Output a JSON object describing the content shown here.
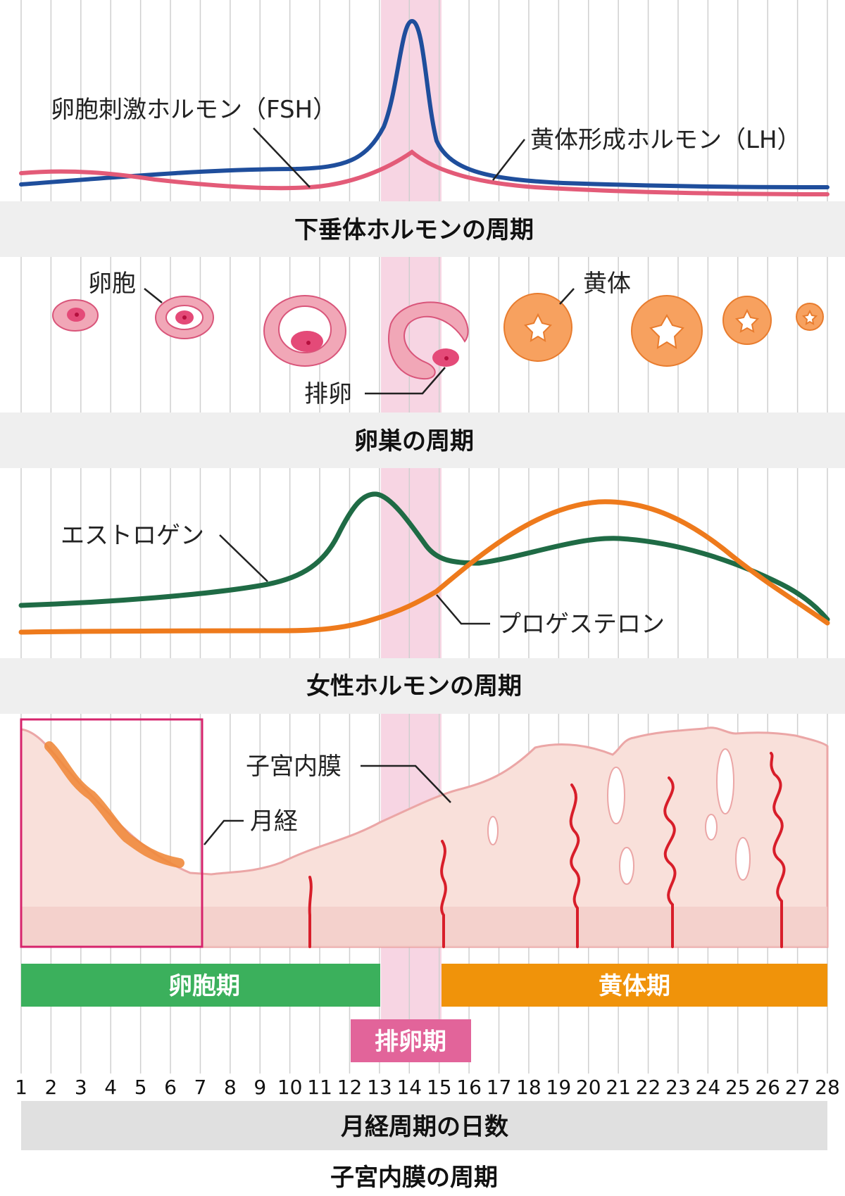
{
  "sections": {
    "pituitary": "下垂体ホルモンの周期",
    "ovary": "卵巣の周期",
    "female_hormone": "女性ホルモンの周期",
    "days_axis": "月経周期の日数",
    "endometrium": "子宮内膜の周期"
  },
  "labels": {
    "fsh": "卵胞刺激ホルモン（FSH）",
    "lh": "黄体形成ホルモン（LH）",
    "follicle": "卵胞",
    "corpus_luteum": "黄体",
    "ovulation": "排卵",
    "estrogen": "エストロゲン",
    "progesterone": "プロゲステロン",
    "endometrium_label": "子宮内膜",
    "menstruation": "月経"
  },
  "phases": {
    "follicular": "卵胞期",
    "luteal": "黄体期",
    "ovulatory": "排卵期"
  },
  "days": [
    "1",
    "2",
    "3",
    "4",
    "5",
    "6",
    "7",
    "8",
    "9",
    "10",
    "11",
    "12",
    "13",
    "14",
    "15",
    "16",
    "17",
    "18",
    "19",
    "20",
    "21",
    "22",
    "23",
    "24",
    "25",
    "26",
    "27",
    "28"
  ],
  "colors": {
    "lh": "#1f4e9c",
    "fsh": "#e35b78",
    "estrogen": "#1f6b45",
    "progesterone": "#ee7a1c",
    "follicular": "#3bb05c",
    "luteal": "#f0930a",
    "ovulatory": "#e2649a",
    "band": "#f7d5e3",
    "section_bg": "#efefef",
    "endometrium": "#f9e0da",
    "vessel": "#d81e2a",
    "menstruation_box": "#d6246c"
  }
}
